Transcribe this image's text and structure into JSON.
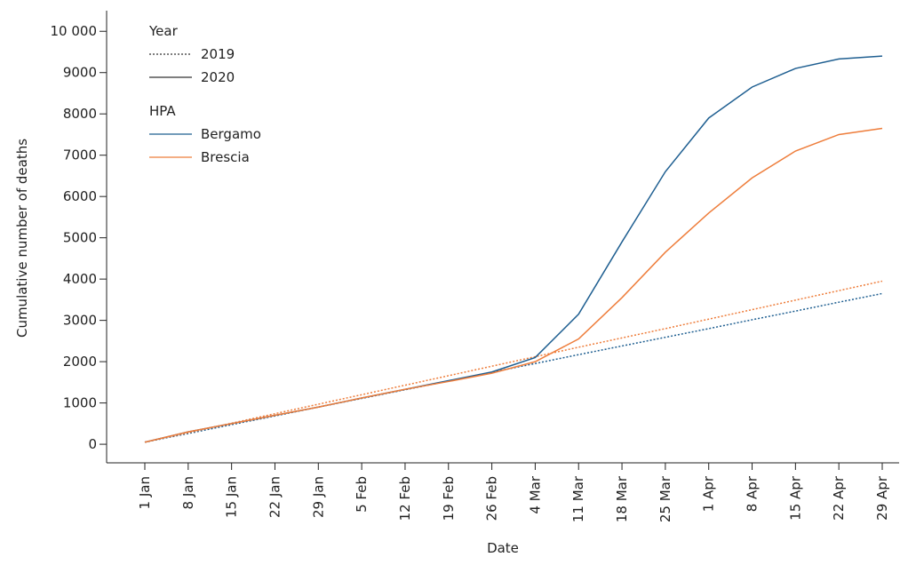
{
  "chart_data": {
    "type": "line",
    "x_label": "Date",
    "y_label": "Cumulative number of deaths",
    "categories": [
      "1 Jan",
      "8 Jan",
      "15 Jan",
      "22 Jan",
      "29 Jan",
      "5 Feb",
      "12 Feb",
      "19 Feb",
      "26 Feb",
      "4 Mar",
      "11 Mar",
      "18 Mar",
      "25 Mar",
      "1 Apr",
      "8 Apr",
      "15 Apr",
      "22 Apr",
      "29 Apr"
    ],
    "ylim": [
      -450,
      10500
    ],
    "yticks": [
      0,
      1000,
      2000,
      3000,
      4000,
      5000,
      6000,
      7000,
      8000,
      9000,
      {
        "value": 10000,
        "label": "10 000"
      }
    ],
    "legend_groups": [
      {
        "title": "Year",
        "entries": [
          {
            "label": "2019",
            "dash": "dotted"
          },
          {
            "label": "2020",
            "dash": "solid"
          }
        ]
      },
      {
        "title": "HPA",
        "entries": [
          {
            "label": "Bergamo",
            "color": "#1f5f91"
          },
          {
            "label": "Brescia",
            "color": "#ee7d3b"
          }
        ]
      }
    ],
    "series": [
      {
        "name": "Bergamo",
        "year": "2019",
        "color": "#1f5f91",
        "dash": "dotted",
        "values": [
          50,
          260,
          475,
          685,
          900,
          1110,
          1320,
          1530,
          1745,
          1955,
          2170,
          2380,
          2590,
          2800,
          3015,
          3225,
          3440,
          3650
        ]
      },
      {
        "name": "Brescia",
        "year": "2019",
        "color": "#ee7d3b",
        "dash": "dotted",
        "values": [
          50,
          280,
          510,
          740,
          970,
          1200,
          1430,
          1660,
          1890,
          2120,
          2350,
          2575,
          2800,
          3030,
          3260,
          3490,
          3720,
          3950
        ]
      },
      {
        "name": "Bergamo",
        "year": "2020",
        "color": "#1f5f91",
        "dash": "solid",
        "values": [
          50,
          300,
          500,
          700,
          900,
          1120,
          1330,
          1540,
          1750,
          2100,
          3150,
          4900,
          6600,
          7900,
          8650,
          9100,
          9330,
          9400
        ]
      },
      {
        "name": "Brescia",
        "year": "2020",
        "color": "#ee7d3b",
        "dash": "solid",
        "values": [
          50,
          300,
          500,
          700,
          900,
          1120,
          1330,
          1520,
          1720,
          2000,
          2550,
          3550,
          4650,
          5600,
          6450,
          7100,
          7500,
          7650
        ]
      }
    ]
  }
}
